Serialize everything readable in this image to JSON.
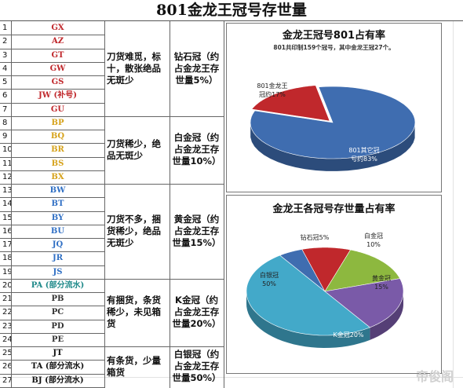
{
  "title": "801金龙王冠号存世量",
  "rows": [
    {
      "num": "1",
      "code": "GX",
      "color": "#c0282c"
    },
    {
      "num": "2",
      "code": "AZ",
      "color": "#c0282c"
    },
    {
      "num": "3",
      "code": "GT",
      "color": "#c0282c"
    },
    {
      "num": "4",
      "code": "GW",
      "color": "#c0282c"
    },
    {
      "num": "5",
      "code": "GS",
      "color": "#c0282c"
    },
    {
      "num": "6",
      "code": "JW (补号)",
      "color": "#c0282c"
    },
    {
      "num": "7",
      "code": "GU",
      "color": "#c0282c"
    },
    {
      "num": "8",
      "code": "BP",
      "color": "#d6a21a"
    },
    {
      "num": "9",
      "code": "BQ",
      "color": "#d6a21a"
    },
    {
      "num": "10",
      "code": "BR",
      "color": "#d6a21a"
    },
    {
      "num": "11",
      "code": "BS",
      "color": "#d6a21a"
    },
    {
      "num": "12",
      "code": "BX",
      "color": "#d6a21a"
    },
    {
      "num": "13",
      "code": "BW",
      "color": "#2f6fc4"
    },
    {
      "num": "14",
      "code": "BT",
      "color": "#2f6fc4"
    },
    {
      "num": "15",
      "code": "BY",
      "color": "#2f6fc4"
    },
    {
      "num": "16",
      "code": "BU",
      "color": "#2f6fc4"
    },
    {
      "num": "17",
      "code": "JQ",
      "color": "#2f6fc4"
    },
    {
      "num": "18",
      "code": "JR",
      "color": "#2f6fc4"
    },
    {
      "num": "19",
      "code": "JS",
      "color": "#2f6fc4"
    },
    {
      "num": "20",
      "code": "PA (部分流水)",
      "color": "#1f8a8a"
    },
    {
      "num": "21",
      "code": "PB",
      "color": "#333333"
    },
    {
      "num": "22",
      "code": "PC",
      "color": "#333333"
    },
    {
      "num": "23",
      "code": "PD",
      "color": "#333333"
    },
    {
      "num": "24",
      "code": "PE",
      "color": "#333333"
    },
    {
      "num": "25",
      "code": "JT",
      "color": "#111111"
    },
    {
      "num": "26",
      "code": "TA (部分流水)",
      "color": "#111111"
    },
    {
      "num": "27",
      "code": "BJ (部分流水)",
      "color": "#111111"
    }
  ],
  "groups": [
    {
      "desc": "刀货难觅，标十，散张绝品无斑少",
      "crown": "钻石冠（约占金龙王存世量5%）"
    },
    {
      "desc": "刀货稀少，绝品无斑少",
      "crown": "白金冠（约占金龙王存世量10%）"
    },
    {
      "desc": "刀货不多，捆货稀少，绝品无斑少",
      "crown": "黄金冠（约占金龙王存世量15%）"
    },
    {
      "desc": "有捆货，条货稀少，未见箱货",
      "crown": "K金冠（约占金龙王存世量20%）"
    },
    {
      "desc": "有条货，少量箱货",
      "crown": "白银冠（约占金龙王存世量50%）"
    }
  ],
  "watermark": "帝俊阁",
  "chart_data": [
    {
      "type": "pie",
      "title": "金龙王冠号801占有率",
      "subtitle": "801共印制159个冠号，其中金龙王冠27个。",
      "categories": [
        "801金龙王冠约17%",
        "801其它冠号约83%"
      ],
      "labels": [
        "801金龙王\n冠约17%",
        "801其它冠\n号约83%"
      ],
      "values": [
        17,
        83
      ],
      "colors": [
        "#c0282c",
        "#3f6db0"
      ]
    },
    {
      "type": "pie",
      "title": "金龙王各冠号存世量占有率",
      "categories": [
        "钻石冠",
        "白金冠",
        "黄金冠",
        "K金冠",
        "白银冠"
      ],
      "labels": [
        "钻石冠5%",
        "白金冠\n10%",
        "黄金冠\n15%",
        "K金冠20%",
        "白银冠\n50%"
      ],
      "values": [
        5,
        10,
        15,
        20,
        50
      ],
      "colors": [
        "#3f6db0",
        "#c0282c",
        "#8db83f",
        "#7a5aa8",
        "#43a9c9"
      ]
    }
  ]
}
